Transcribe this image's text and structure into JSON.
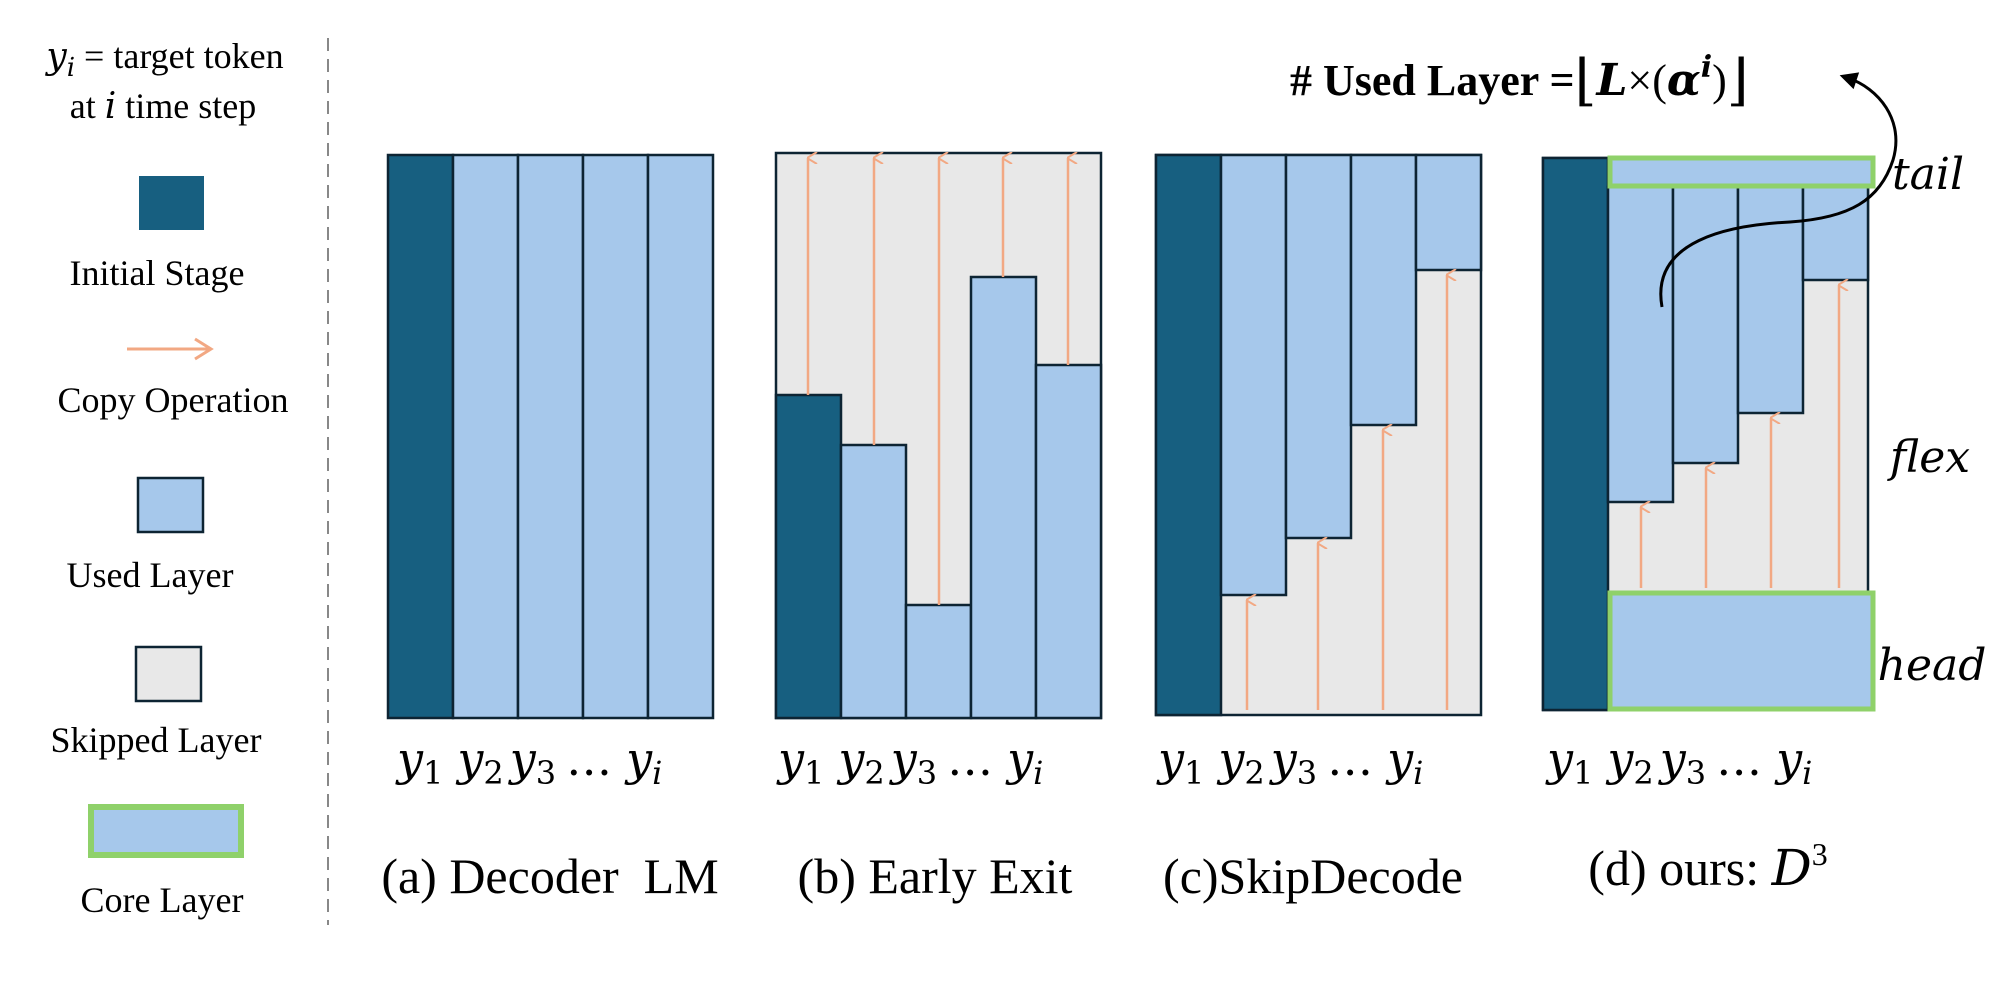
{
  "legend": {
    "definition_var": "y",
    "definition_sub": "i",
    "definition_eq": " = target token",
    "definition_line2_pre": "at ",
    "definition_line2_var": "i",
    "definition_line2_post": " time step",
    "items": [
      {
        "key": "initial",
        "label": "Initial Stage"
      },
      {
        "key": "copy",
        "label": "Copy Operation"
      },
      {
        "key": "used",
        "label": "Used Layer"
      },
      {
        "key": "skipped",
        "label": "Skipped Layer"
      },
      {
        "key": "core",
        "label": "Core Layer"
      }
    ]
  },
  "token_labels": {
    "var": "y",
    "sub1": "1",
    "sub2": "2",
    "sub3": "3",
    "ellipsis": "…",
    "subi": "i"
  },
  "panels": [
    {
      "id": "a",
      "caption": "(a) Decoder  LM"
    },
    {
      "id": "b",
      "caption": "(b) Early Exit"
    },
    {
      "id": "c",
      "caption": "(c)SkipDecode"
    },
    {
      "id": "d",
      "caption_pre": "(d) ours: ",
      "caption_var": "D",
      "caption_sup": "3"
    }
  ],
  "formula": {
    "prefix": "# Used Layer =",
    "floor_left": "⌊",
    "body_L": "L",
    "times": "×(",
    "alpha": "α",
    "alpha_sup": "i",
    "close": ")",
    "floor_right": "⌋"
  },
  "region_labels": {
    "tail": "tail",
    "flex": "flex",
    "head": "head"
  },
  "colors": {
    "initial": "#175f80",
    "used": "#a6c8eb",
    "skipped": "#e8e8e8",
    "core_border": "#8fd16a",
    "arrow": "#f2a883",
    "stroke": "#0d2433"
  }
}
